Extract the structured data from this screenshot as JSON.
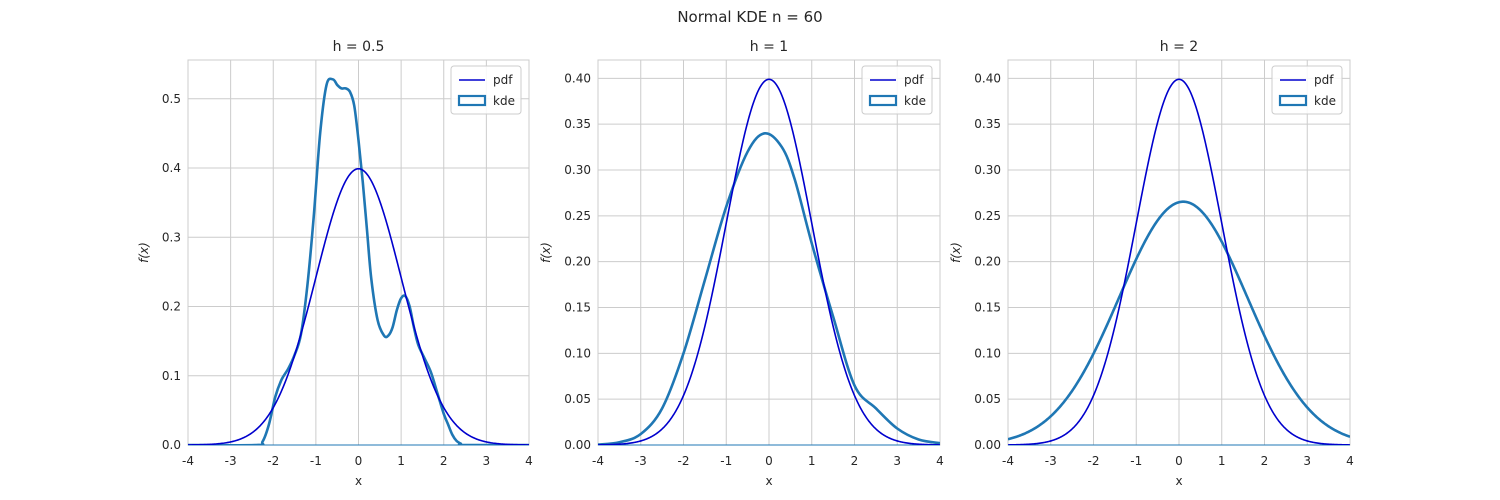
{
  "figure": {
    "title": "Normal KDE n = 60",
    "colors": {
      "pdf": "#0000cd",
      "kde": "#1f77b4",
      "grid": "#cccccc"
    }
  },
  "chart_data": [
    {
      "type": "line",
      "title": "h = 0.5",
      "xlabel": "x",
      "ylabel": "f(x)",
      "xlim": [
        -4,
        4
      ],
      "ylim": [
        0,
        0.556
      ],
      "xticks": [
        "-4",
        "-3",
        "-2",
        "-1",
        "0",
        "1",
        "2",
        "3",
        "4"
      ],
      "yticks": [
        "0.0",
        "0.1",
        "0.2",
        "0.3",
        "0.4",
        "0.5"
      ],
      "grid": true,
      "legend": {
        "placement": "top-right",
        "entries": [
          "pdf",
          "kde"
        ]
      },
      "series": [
        {
          "name": "pdf",
          "kind": "normal",
          "mu": 0,
          "sigma": 1
        },
        {
          "name": "kde",
          "x": [
            -4,
            -2.4,
            -2.25,
            -2.1,
            -1.95,
            -1.8,
            -1.65,
            -1.5,
            -1.35,
            -1.2,
            -1.05,
            -0.9,
            -0.75,
            -0.6,
            -0.5,
            -0.4,
            -0.3,
            -0.2,
            -0.1,
            0,
            0.1,
            0.2,
            0.3,
            0.45,
            0.6,
            0.7,
            0.8,
            0.9,
            1.0,
            1.1,
            1.2,
            1.3,
            1.4,
            1.55,
            1.7,
            1.85,
            2.0,
            2.1,
            2.2,
            2.3,
            2.4,
            2.5,
            4
          ],
          "values": [
            0,
            0,
            0.005,
            0.03,
            0.07,
            0.095,
            0.11,
            0.13,
            0.16,
            0.23,
            0.33,
            0.45,
            0.52,
            0.528,
            0.52,
            0.515,
            0.515,
            0.51,
            0.49,
            0.44,
            0.38,
            0.31,
            0.24,
            0.18,
            0.158,
            0.158,
            0.17,
            0.195,
            0.212,
            0.215,
            0.2,
            0.17,
            0.145,
            0.125,
            0.105,
            0.075,
            0.045,
            0.03,
            0.015,
            0.006,
            0.002,
            0,
            0
          ]
        }
      ]
    },
    {
      "type": "line",
      "title": "h = 1",
      "xlabel": "x",
      "ylabel": "f(x)",
      "xlim": [
        -4,
        4
      ],
      "ylim": [
        0,
        0.42
      ],
      "xticks": [
        "-4",
        "-3",
        "-2",
        "-1",
        "0",
        "1",
        "2",
        "3",
        "4"
      ],
      "yticks": [
        "0.00",
        "0.05",
        "0.10",
        "0.15",
        "0.20",
        "0.25",
        "0.30",
        "0.35",
        "0.40"
      ],
      "grid": true,
      "legend": {
        "placement": "top-right",
        "entries": [
          "pdf",
          "kde"
        ]
      },
      "series": [
        {
          "name": "pdf",
          "kind": "normal",
          "mu": 0,
          "sigma": 1
        },
        {
          "name": "kde",
          "x": [
            -4,
            -3.5,
            -3,
            -2.5,
            -2,
            -1.5,
            -1,
            -0.5,
            -0.1,
            0.3,
            0.6,
            1,
            1.5,
            2,
            2.5,
            3,
            3.5,
            4
          ],
          "values": [
            0.0005,
            0.003,
            0.012,
            0.04,
            0.1,
            0.18,
            0.26,
            0.32,
            0.34,
            0.325,
            0.29,
            0.22,
            0.14,
            0.065,
            0.04,
            0.018,
            0.006,
            0.002
          ]
        }
      ]
    },
    {
      "type": "line",
      "title": "h = 2",
      "xlabel": "x",
      "ylabel": "f(x)",
      "xlim": [
        -4,
        4
      ],
      "ylim": [
        0,
        0.42
      ],
      "xticks": [
        "-4",
        "-3",
        "-2",
        "-1",
        "0",
        "1",
        "2",
        "3",
        "4"
      ],
      "yticks": [
        "0.00",
        "0.05",
        "0.10",
        "0.15",
        "0.20",
        "0.25",
        "0.30",
        "0.35",
        "0.40"
      ],
      "grid": true,
      "legend": {
        "placement": "top-right",
        "entries": [
          "pdf",
          "kde"
        ]
      },
      "series": [
        {
          "name": "pdf",
          "kind": "normal",
          "mu": 0,
          "sigma": 1
        },
        {
          "name": "kde",
          "kind": "normal",
          "mu": 0.1,
          "sigma": 1.5,
          "scale": 0.998
        }
      ]
    }
  ]
}
